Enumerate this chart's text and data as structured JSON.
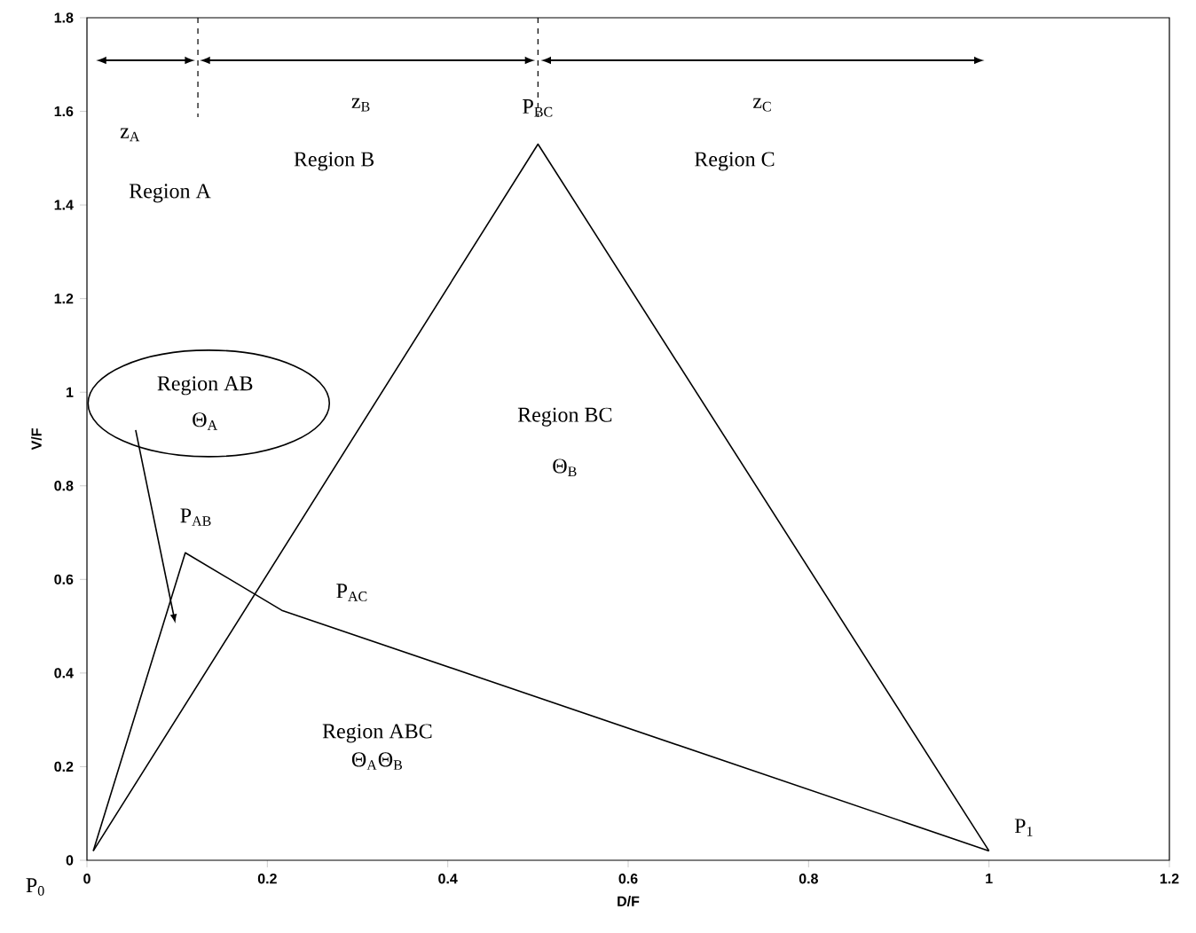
{
  "chart_data": {
    "type": "line",
    "xlabel": "D/F",
    "ylabel": "V/F",
    "xlim": [
      0,
      1.2
    ],
    "ylim": [
      0,
      1.8
    ],
    "xticks": [
      0,
      0.2,
      0.4,
      0.6,
      0.8,
      1,
      1.2
    ],
    "yticks": [
      0,
      0.2,
      0.4,
      0.6,
      0.8,
      1,
      1.2,
      1.4,
      1.6,
      1.8
    ],
    "series": [
      {
        "color": "#000000",
        "x": [
          0.007,
          0.5,
          1.0
        ],
        "values": [
          0.02,
          1.53,
          0.02
        ]
      },
      {
        "color": "#000000",
        "x": [
          0.007,
          0.109,
          0.216,
          1.0
        ],
        "values": [
          0.02,
          0.657,
          0.534,
          0.02
        ]
      }
    ],
    "ref_lines": [
      {
        "axis": "x",
        "value": 0.123,
        "line_style": "dashed",
        "color": "#000000"
      },
      {
        "axis": "x",
        "value": 0.5,
        "line_style": "dashed",
        "color": "#000000"
      }
    ],
    "annotations": [
      "z$_{A}$",
      "Region A",
      "z$_{B}$",
      "Region B",
      "P$_{BC}$",
      "z$_{C}$",
      "Region C",
      "Region AB",
      "Θ$_{A}$",
      "P$_{AB}$",
      "P$_{AC}$",
      "Region BC",
      "Θ$_{B}$",
      "Region ABC",
      "Θ$_{A}$Θ$_{B}$",
      "P$_{1}$",
      "P$_{0}$"
    ]
  }
}
